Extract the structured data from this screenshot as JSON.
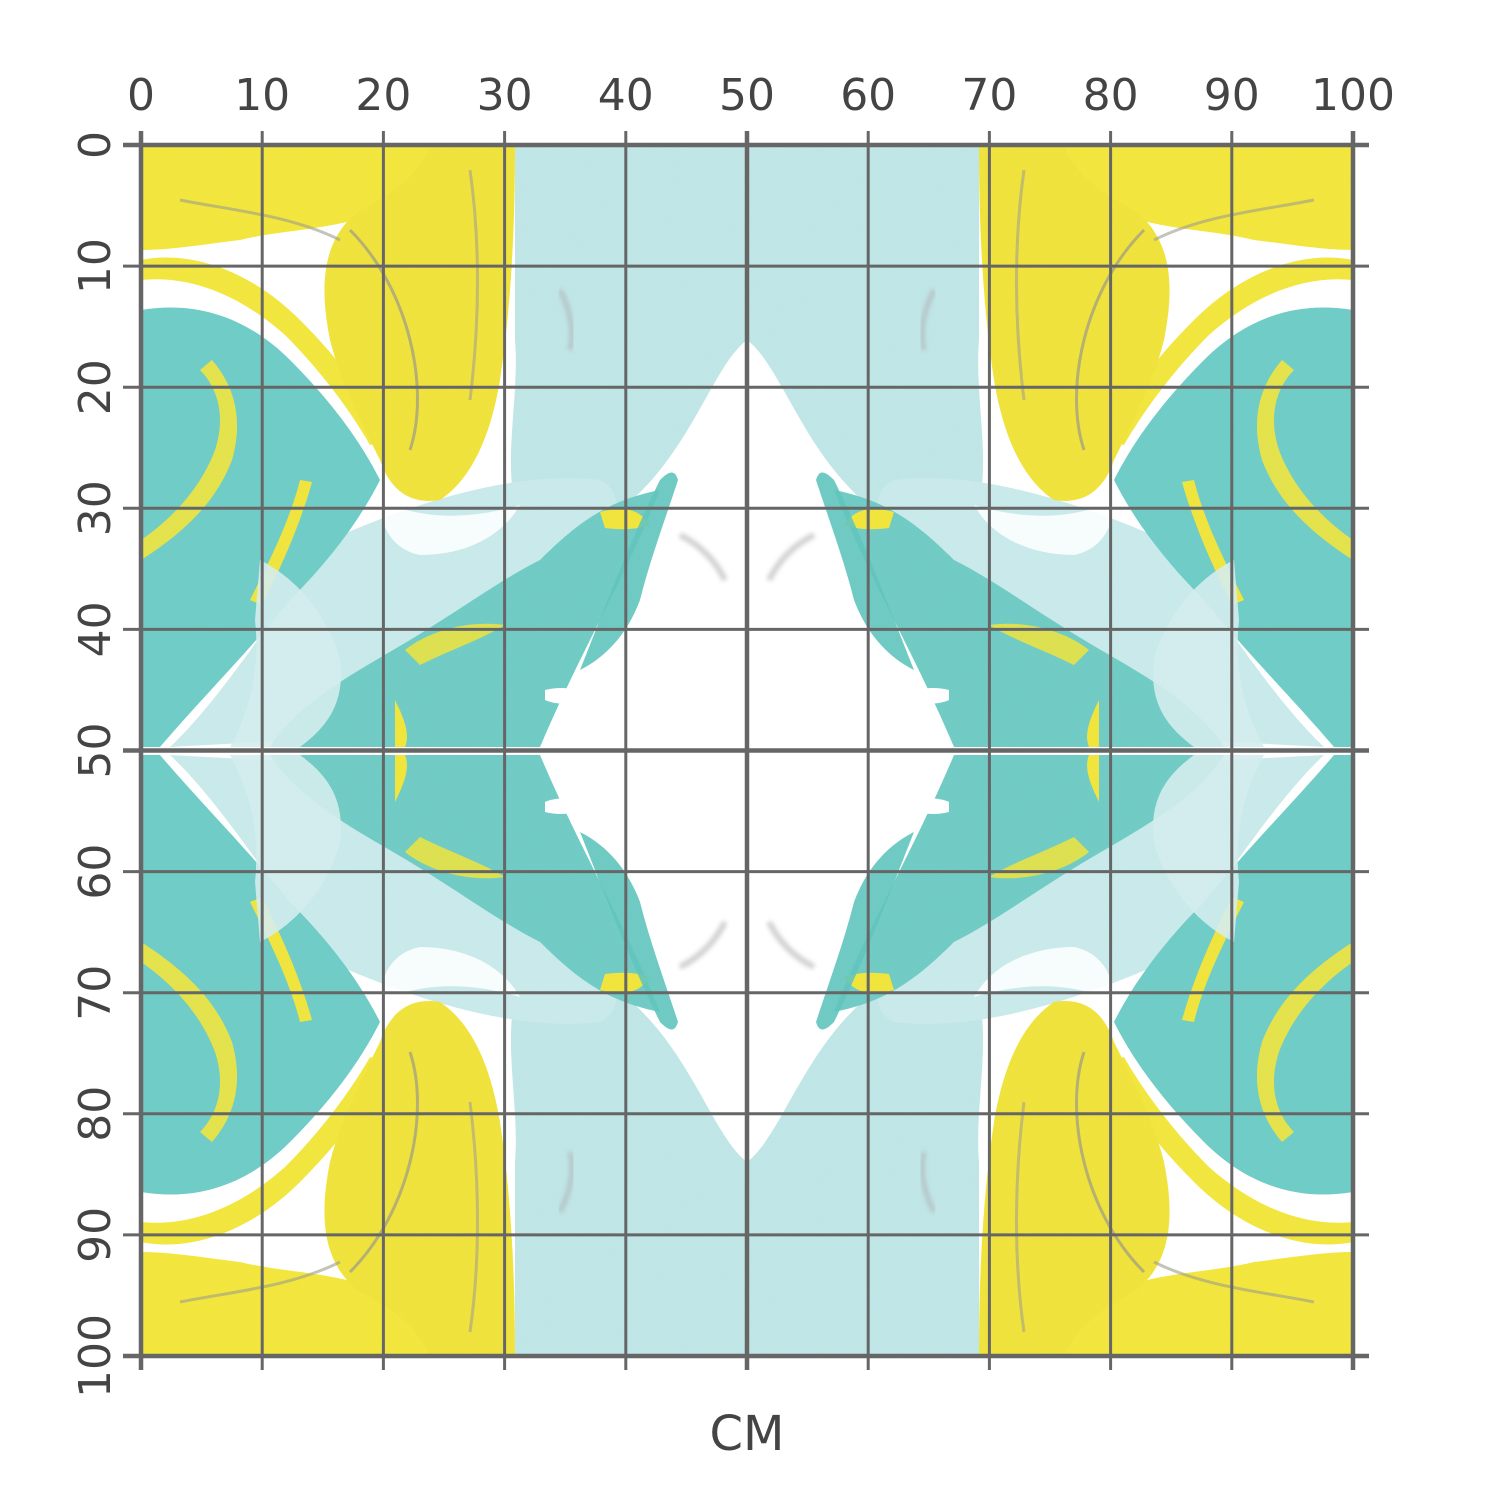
{
  "ruler": {
    "unit_label": "CM",
    "x_ticks": [
      "0",
      "10",
      "20",
      "30",
      "40",
      "50",
      "60",
      "70",
      "80",
      "90",
      "100"
    ],
    "y_ticks": [
      "0",
      "10",
      "20",
      "30",
      "40",
      "50",
      "60",
      "70",
      "80",
      "90",
      "100"
    ],
    "grid_color": "#666666"
  },
  "pattern": {
    "description_colors": {
      "yellow": "#f0e63a",
      "teal": "#6ccbc6",
      "light_teal": "#b9e3e4",
      "white": "#ffffff",
      "gray_vein": "#8f8f8f"
    }
  }
}
